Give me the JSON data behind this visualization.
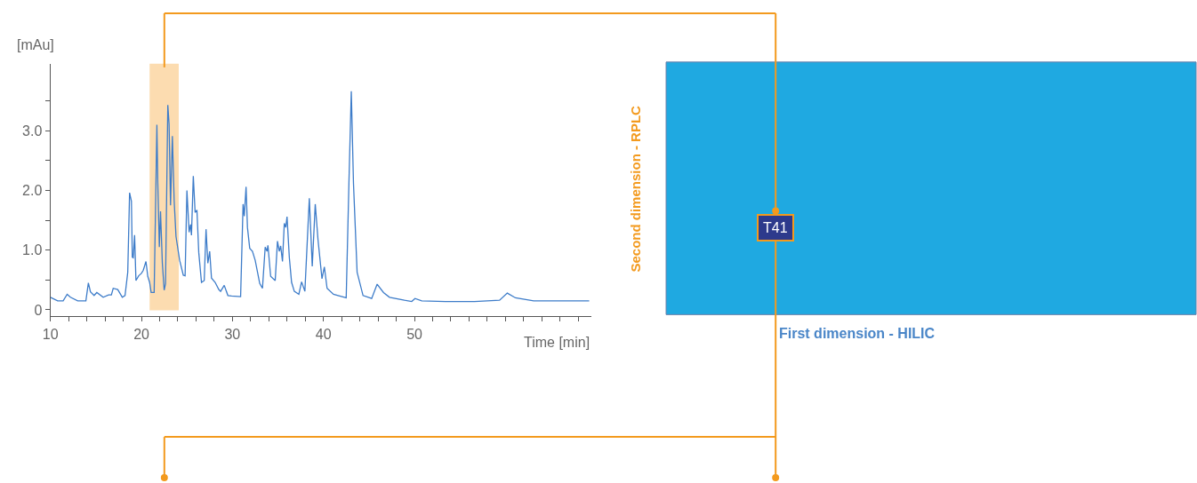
{
  "chart_data": [
    {
      "type": "line",
      "ylabel": "[mAu]",
      "xlabel": "Time [min]",
      "xlim": [
        10,
        69.4
      ],
      "ylim": [
        -0.11,
        4.12
      ],
      "xticks": [
        10,
        {
          "value": 12,
          "label": null
        },
        {
          "value": 14,
          "label": null
        },
        {
          "value": 16,
          "label": null
        },
        {
          "value": 18,
          "label": null
        },
        20,
        {
          "value": 22,
          "label": null
        },
        {
          "value": 24,
          "label": null
        },
        {
          "value": 26,
          "label": null
        },
        {
          "value": 28,
          "label": null
        },
        30,
        {
          "value": 32,
          "label": null
        },
        {
          "value": 34,
          "label": null
        },
        {
          "value": 36,
          "label": null
        },
        {
          "value": 38,
          "label": null
        },
        40,
        {
          "value": 42,
          "label": null
        },
        {
          "value": 44,
          "label": null
        },
        {
          "value": 46,
          "label": null
        },
        {
          "value": 48,
          "label": null
        },
        50,
        {
          "value": 52,
          "label": null
        },
        {
          "value": 54,
          "label": null
        },
        {
          "value": 56,
          "label": null
        },
        {
          "value": 58,
          "label": null
        },
        {
          "value": 60,
          "label": null
        },
        {
          "value": 62,
          "label": null
        },
        {
          "value": 64,
          "label": null
        },
        {
          "value": 66,
          "label": null
        },
        {
          "value": 68,
          "label": null
        }
      ],
      "yticks": [
        0,
        {
          "value": 0.5,
          "label": null
        },
        {
          "value": 1,
          "label": "1.0"
        },
        {
          "value": 1.5,
          "label": null
        },
        {
          "value": 2,
          "label": "2.0"
        },
        {
          "value": 2.5,
          "label": null
        },
        {
          "value": 3,
          "label": "3.0"
        },
        {
          "value": 3.5,
          "label": null
        }
      ],
      "grid": false,
      "marker": "none",
      "line_style": "solid",
      "bands": [
        {
          "axis": "x",
          "from": 20.9,
          "to": 24.1,
          "color": "#fcdcb0"
        }
      ],
      "series": [
        {
          "color": "#3d7cc9",
          "x": [
            10,
            10.8,
            11.4,
            11.84,
            12.2,
            13.0,
            13.9,
            14.17,
            14.4,
            14.8,
            15.1,
            15.8,
            16.4,
            16.7,
            16.9,
            17.4,
            17.9,
            18.2,
            18.5,
            18.7,
            18.9,
            19.0,
            19.1,
            19.25,
            19.4,
            19.7,
            20.0,
            20.2,
            20.5,
            20.7,
            20.9,
            21.07,
            21.4,
            21.7,
            21.8,
            21.97,
            22.1,
            22.3,
            22.5,
            22.65,
            22.9,
            23.04,
            23.2,
            23.4,
            23.6,
            23.8,
            24.2,
            24.6,
            24.8,
            25.0,
            25.24,
            25.4,
            25.5,
            25.7,
            25.9,
            26.1,
            26.3,
            26.6,
            26.9,
            27.1,
            27.3,
            27.5,
            27.7,
            28.1,
            28.5,
            28.7,
            29.1,
            29.5,
            29.9,
            30.9,
            31.17,
            31.3,
            31.5,
            31.65,
            31.9,
            32.2,
            32.5,
            33.0,
            33.3,
            33.6,
            33.8,
            33.9,
            34.2,
            34.7,
            34.95,
            35.15,
            35.3,
            35.5,
            35.7,
            35.86,
            36.0,
            36.25,
            36.5,
            36.8,
            37.3,
            37.6,
            37.96,
            38.45,
            38.77,
            39.1,
            39.4,
            39.84,
            40.1,
            40.4,
            41.1,
            41.6,
            42.5,
            42.8,
            43.06,
            43.3,
            43.7,
            44.35,
            45.3,
            45.9,
            46.6,
            47.26,
            48.9,
            49.7,
            50.06,
            50.8,
            53.4,
            56.6,
            59.35,
            60.2,
            61.1,
            63.1,
            69.2
          ],
          "values": [
            0.21,
            0.15,
            0.15,
            0.26,
            0.21,
            0.15,
            0.15,
            0.45,
            0.3,
            0.24,
            0.29,
            0.21,
            0.25,
            0.25,
            0.36,
            0.34,
            0.21,
            0.24,
            0.63,
            1.96,
            1.82,
            0.88,
            0.87,
            1.25,
            0.49,
            0.57,
            0.61,
            0.66,
            0.81,
            0.56,
            0.46,
            0.29,
            0.29,
            3.1,
            2.12,
            1.05,
            1.65,
            0.78,
            0.33,
            0.44,
            3.43,
            3.11,
            1.75,
            2.91,
            1.82,
            1.23,
            0.83,
            0.58,
            0.57,
            2.0,
            1.3,
            1.43,
            1.25,
            2.24,
            1.63,
            1.67,
            0.96,
            0.46,
            0.49,
            1.35,
            0.78,
            0.98,
            0.53,
            0.46,
            0.34,
            0.31,
            0.41,
            0.24,
            0.23,
            0.22,
            1.77,
            1.57,
            2.06,
            1.38,
            1.03,
            0.98,
            0.83,
            0.44,
            0.36,
            1.05,
            0.98,
            1.08,
            0.56,
            0.49,
            1.15,
            0.98,
            1.07,
            0.81,
            1.45,
            1.38,
            1.56,
            0.88,
            0.46,
            0.31,
            0.26,
            0.47,
            0.31,
            1.87,
            0.73,
            1.77,
            1.18,
            0.52,
            0.72,
            0.36,
            0.26,
            0.24,
            0.2,
            2.12,
            3.66,
            2.12,
            0.63,
            0.24,
            0.19,
            0.43,
            0.29,
            0.21,
            0.16,
            0.14,
            0.19,
            0.15,
            0.14,
            0.14,
            0.16,
            0.28,
            0.2,
            0.15,
            0.15
          ]
        }
      ]
    },
    {
      "type": "other",
      "xlabel": "First dimension - HILIC",
      "ylabel": "Second dimension - RPLC",
      "annotations": [
        "T41"
      ]
    }
  ]
}
